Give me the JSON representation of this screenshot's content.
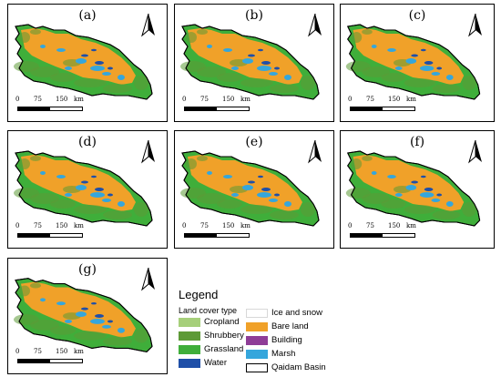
{
  "panels": [
    {
      "label": "(a)"
    },
    {
      "label": "(b)"
    },
    {
      "label": "(c)"
    },
    {
      "label": "(d)"
    },
    {
      "label": "(e)"
    },
    {
      "label": "(f)"
    },
    {
      "label": "(g)"
    }
  ],
  "scale": {
    "t0": "0",
    "t1": "75",
    "t2": "150",
    "unit": "km"
  },
  "legend": {
    "title": "Legend",
    "subtitle": "Land cover type",
    "items": [
      {
        "label": "Cropland",
        "color": "#a6cf7a"
      },
      {
        "label": "Shrubbery",
        "color": "#5d9a37"
      },
      {
        "label": "Grassland",
        "color": "#3fae3a"
      },
      {
        "label": "Water",
        "color": "#1f4fa8"
      },
      {
        "label": "Ice and snow",
        "color": "#ffffff"
      },
      {
        "label": "Bare land",
        "color": "#f0a129"
      },
      {
        "label": "Building",
        "color": "#8f3d97"
      },
      {
        "label": "Marsh",
        "color": "#35a6dc"
      },
      {
        "label": "Qaidam Basin",
        "color": "#ffffff"
      }
    ]
  },
  "colors": {
    "bare": "#f0a129",
    "grass": "#3fae3a",
    "shrub": "#5d9a37",
    "marsh": "#35a6dc",
    "water": "#1f4fa8",
    "crop": "#a6cf7a"
  }
}
